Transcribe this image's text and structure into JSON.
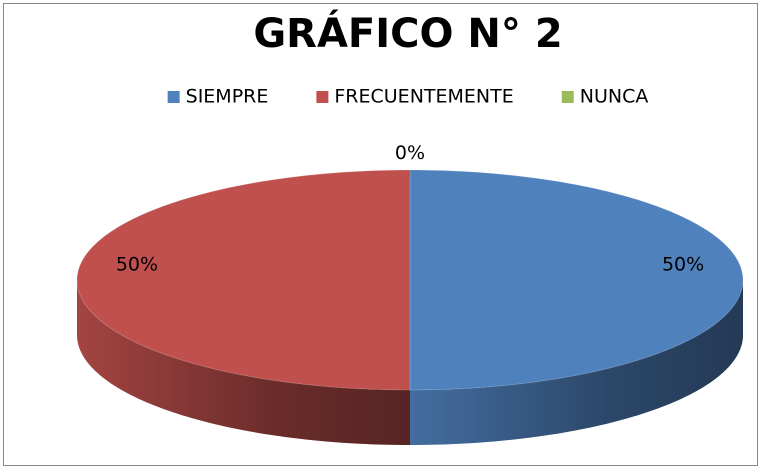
{
  "chart_data": {
    "type": "pie",
    "title": "GRÁFICO N° 2",
    "categories": [
      "SIEMPRE",
      "FRECUENTEMENTE",
      "NUNCA"
    ],
    "values": [
      50,
      50,
      0
    ],
    "value_labels": [
      "50%",
      "50%",
      "0%"
    ],
    "colors": [
      "#4f81bd",
      "#c0504d",
      "#9bbb59"
    ],
    "legend": "top"
  }
}
